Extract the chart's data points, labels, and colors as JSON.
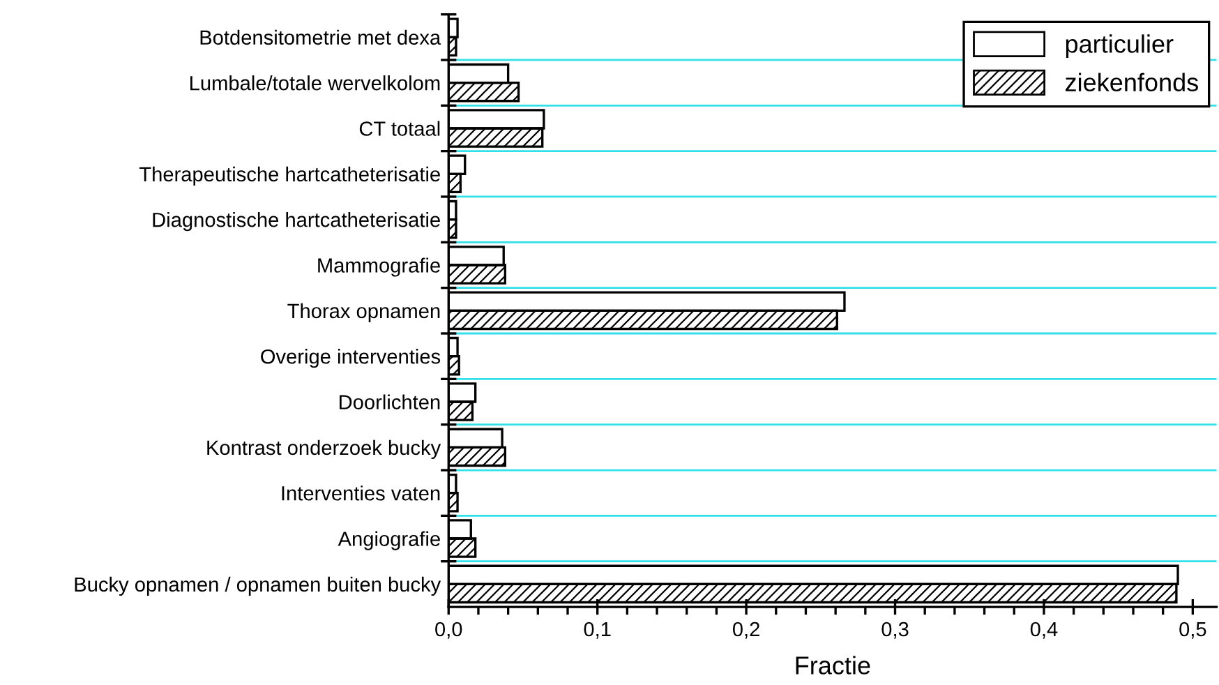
{
  "chart_data": {
    "type": "bar",
    "orientation": "horizontal",
    "xlabel": "Fractie",
    "categories": [
      "Botdensitometrie met dexa",
      "Lumbale/totale wervelkolom",
      "CT totaal",
      "Therapeutische hartcatheterisatie",
      "Diagnostische hartcatheterisatie",
      "Mammografie",
      "Thorax opnamen",
      "Overige interventies",
      "Doorlichten",
      "Kontrast onderzoek bucky",
      "Interventies vaten",
      "Angiografie",
      "Bucky opnamen / opnamen buiten bucky"
    ],
    "series": [
      {
        "name": "particulier",
        "color": "#ffffff",
        "values": [
          0.006,
          0.04,
          0.064,
          0.011,
          0.005,
          0.037,
          0.266,
          0.006,
          0.018,
          0.036,
          0.005,
          0.015,
          0.49
        ]
      },
      {
        "name": "ziekenfonds",
        "color": "#000000",
        "values": [
          0.005,
          0.047,
          0.063,
          0.008,
          0.005,
          0.038,
          0.261,
          0.007,
          0.016,
          0.038,
          0.006,
          0.018,
          0.489
        ]
      }
    ],
    "xlim": [
      0,
      0.516
    ],
    "xticks": [
      {
        "value": 0,
        "label": "0,0"
      },
      {
        "value": 0.1,
        "label": "0,1"
      },
      {
        "value": 0.2,
        "label": "0,2"
      },
      {
        "value": 0.3,
        "label": "0,3"
      },
      {
        "value": 0.4,
        "label": "0,4"
      },
      {
        "value": 0.5,
        "label": "0,5"
      }
    ],
    "grid": "y",
    "legend": "top right"
  }
}
